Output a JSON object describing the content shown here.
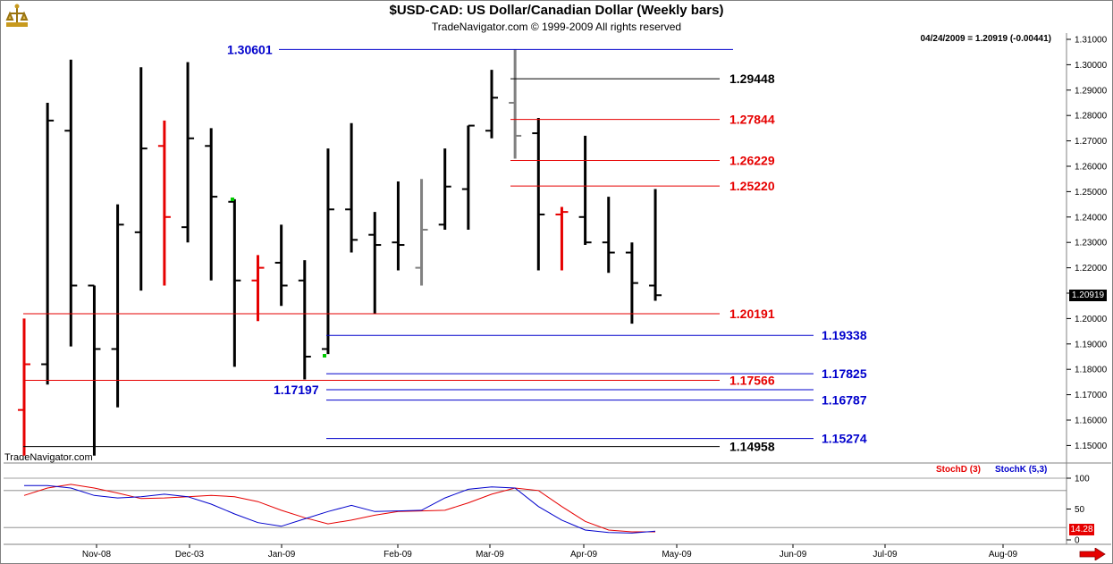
{
  "header": {
    "title": "$USD-CAD:  US Dollar/Canadian Dollar  (Weekly bars)",
    "subtitle": "TradeNavigator.com © 1999-2009 All rights reserved",
    "readout": "04/24/2009 = 1.20919 (-0.00441)",
    "watermark": "TradeNavigator.com",
    "last_price": "1.20919",
    "stoch_value": "14.28"
  },
  "colors": {
    "up_bar": "#000000",
    "down_bar": "#e60000",
    "neutral_bar": "#808080",
    "blue_level": "#0000cc",
    "red_level": "#e60000",
    "black_level": "#000000",
    "stoch_d": "#e60000",
    "stoch_k": "#0000cc"
  },
  "chart_data": [
    {
      "type": "ohlc",
      "title": "$USD-CAD:  US Dollar/Canadian Dollar  (Weekly bars)",
      "ylim": [
        1.145,
        1.312
      ],
      "y_ticks": [
        "1.15000",
        "1.16000",
        "1.17000",
        "1.18000",
        "1.19000",
        "1.20000",
        "1.21000",
        "1.22000",
        "1.23000",
        "1.24000",
        "1.25000",
        "1.26000",
        "1.27000",
        "1.28000",
        "1.29000",
        "1.30000",
        "1.31000"
      ],
      "x_tick_labels": [
        "Nov-08",
        "Dec-03",
        "Jan-09",
        "Feb-09",
        "Mar-09",
        "Apr-09",
        "May-09",
        "Jun-09",
        "Jul-09",
        "Aug-09"
      ],
      "bars": [
        {
          "o": 1.164,
          "h": 1.2,
          "l": 1.146,
          "c": 1.182,
          "color": "red"
        },
        {
          "o": 1.182,
          "h": 1.285,
          "l": 1.174,
          "c": 1.278,
          "color": "black"
        },
        {
          "o": 1.274,
          "h": 1.302,
          "l": 1.189,
          "c": 1.213,
          "color": "black"
        },
        {
          "o": 1.213,
          "h": 1.213,
          "l": 1.146,
          "c": 1.188,
          "color": "black"
        },
        {
          "o": 1.188,
          "h": 1.245,
          "l": 1.165,
          "c": 1.237,
          "color": "black"
        },
        {
          "o": 1.234,
          "h": 1.299,
          "l": 1.211,
          "c": 1.267,
          "color": "black"
        },
        {
          "o": 1.268,
          "h": 1.278,
          "l": 1.213,
          "c": 1.24,
          "color": "red"
        },
        {
          "o": 1.236,
          "h": 1.301,
          "l": 1.23,
          "c": 1.271,
          "color": "black"
        },
        {
          "o": 1.268,
          "h": 1.275,
          "l": 1.215,
          "c": 1.248,
          "color": "black"
        },
        {
          "o": 1.246,
          "h": 1.247,
          "l": 1.181,
          "c": 1.215,
          "color": "black"
        },
        {
          "o": 1.215,
          "h": 1.225,
          "l": 1.199,
          "c": 1.22,
          "color": "red"
        },
        {
          "o": 1.222,
          "h": 1.237,
          "l": 1.205,
          "c": 1.213,
          "color": "black"
        },
        {
          "o": 1.215,
          "h": 1.223,
          "l": 1.176,
          "c": 1.185,
          "color": "black"
        },
        {
          "o": 1.188,
          "h": 1.267,
          "l": 1.186,
          "c": 1.243,
          "color": "black"
        },
        {
          "o": 1.243,
          "h": 1.277,
          "l": 1.226,
          "c": 1.231,
          "color": "black"
        },
        {
          "o": 1.233,
          "h": 1.242,
          "l": 1.202,
          "c": 1.229,
          "color": "black"
        },
        {
          "o": 1.23,
          "h": 1.254,
          "l": 1.219,
          "c": 1.229,
          "color": "black"
        },
        {
          "o": 1.22,
          "h": 1.255,
          "l": 1.213,
          "c": 1.235,
          "color": "gray"
        },
        {
          "o": 1.237,
          "h": 1.267,
          "l": 1.235,
          "c": 1.252,
          "color": "black"
        },
        {
          "o": 1.251,
          "h": 1.276,
          "l": 1.235,
          "c": 1.276,
          "color": "black"
        },
        {
          "o": 1.274,
          "h": 1.298,
          "l": 1.271,
          "c": 1.287,
          "color": "black"
        },
        {
          "o": 1.285,
          "h": 1.306,
          "l": 1.263,
          "c": 1.272,
          "color": "gray"
        },
        {
          "o": 1.273,
          "h": 1.279,
          "l": 1.219,
          "c": 1.241,
          "color": "black"
        },
        {
          "o": 1.241,
          "h": 1.244,
          "l": 1.219,
          "c": 1.242,
          "color": "red"
        },
        {
          "o": 1.24,
          "h": 1.272,
          "l": 1.229,
          "c": 1.23,
          "color": "black"
        },
        {
          "o": 1.23,
          "h": 1.248,
          "l": 1.218,
          "c": 1.226,
          "color": "black"
        },
        {
          "o": 1.226,
          "h": 1.23,
          "l": 1.198,
          "c": 1.214,
          "color": "black"
        },
        {
          "o": 1.213,
          "h": 1.251,
          "l": 1.207,
          "c": 1.2092,
          "color": "black"
        }
      ],
      "levels": [
        {
          "label": "1.30601",
          "value": 1.30601,
          "color": "blue"
        },
        {
          "label": "1.29448",
          "value": 1.29448,
          "color": "black"
        },
        {
          "label": "1.27844",
          "value": 1.27844,
          "color": "red"
        },
        {
          "label": "1.26229",
          "value": 1.26229,
          "color": "red"
        },
        {
          "label": "1.25220",
          "value": 1.2522,
          "color": "red"
        },
        {
          "label": "1.20191",
          "value": 1.20191,
          "color": "red"
        },
        {
          "label": "1.19338",
          "value": 1.19338,
          "color": "blue"
        },
        {
          "label": "1.17825",
          "value": 1.17825,
          "color": "blue"
        },
        {
          "label": "1.17566",
          "value": 1.17566,
          "color": "red"
        },
        {
          "label": "1.17197",
          "value": 1.17197,
          "color": "blue"
        },
        {
          "label": "1.16787",
          "value": 1.16787,
          "color": "blue"
        },
        {
          "label": "1.15274",
          "value": 1.15274,
          "color": "blue"
        },
        {
          "label": "1.14958",
          "value": 1.14958,
          "color": "black"
        }
      ]
    },
    {
      "type": "line",
      "ylim": [
        0,
        100
      ],
      "y_ticks": [
        "100",
        "50",
        "0"
      ],
      "series": [
        {
          "name": "StochD (3)",
          "color": "red",
          "values": [
            72,
            84,
            90,
            84,
            76,
            67,
            68,
            70,
            72,
            70,
            62,
            48,
            36,
            26,
            32,
            40,
            46,
            47,
            48,
            60,
            74,
            84,
            80,
            54,
            30,
            16,
            13,
            13
          ]
        },
        {
          "name": "StochK (5,3)",
          "color": "blue",
          "values": [
            88,
            88,
            84,
            72,
            68,
            70,
            74,
            70,
            58,
            42,
            28,
            22,
            34,
            46,
            56,
            46,
            47,
            48,
            68,
            82,
            86,
            84,
            54,
            32,
            16,
            12,
            11,
            14
          ]
        }
      ]
    }
  ]
}
